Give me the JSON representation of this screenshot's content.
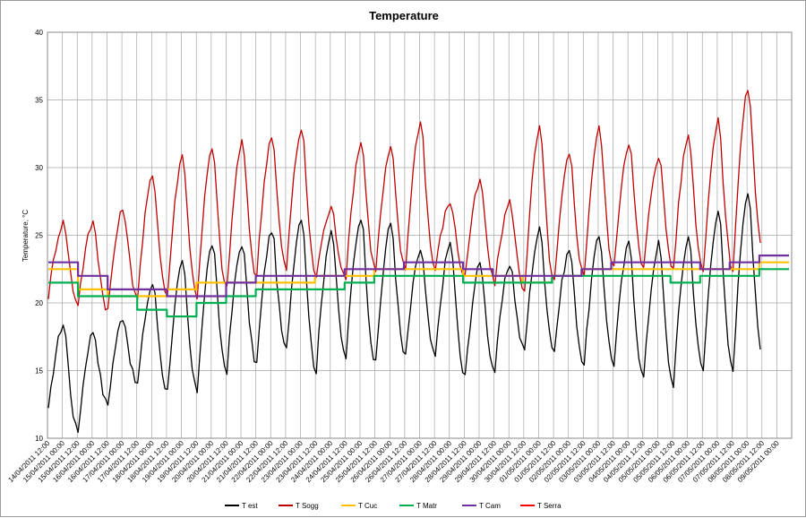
{
  "chart_data": {
    "type": "line",
    "title": "Temperature",
    "ylabel": "Temperature, °C",
    "xlabel": "",
    "ylim": [
      10,
      40
    ],
    "yticks": [
      10,
      15,
      20,
      25,
      30,
      35,
      40
    ],
    "grid": true,
    "legend": "bottom",
    "x_ticks": [
      "14/04/2011 12:00",
      "15/04/2011 00:00",
      "15/04/2011 12:00",
      "16/04/2011 00:00",
      "16/04/2011 12:00",
      "17/04/2011 00:00",
      "17/04/2011 12:00",
      "18/04/2011 00:00",
      "18/04/2011 12:00",
      "19/04/2011 00:00",
      "19/04/2011 12:00",
      "20/04/2011 00:00",
      "20/04/2011 12:00",
      "21/04/2011 00:00",
      "21/04/2011 12:00",
      "22/04/2011 00:00",
      "22/04/2011 12:00",
      "23/04/2011 00:00",
      "23/04/2011 12:00",
      "24/04/2011 00:00",
      "24/04/2011 12:00",
      "25/04/2011 00:00",
      "25/04/2011 12:00",
      "26/04/2011 00:00",
      "26/04/2011 12:00",
      "27/04/2011 00:00",
      "27/04/2011 12:00",
      "28/04/2011 00:00",
      "28/04/2011 12:00",
      "29/04/2011 00:00",
      "29/04/2011 12:00",
      "30/04/2011 00:00",
      "30/04/2011 12:00",
      "01/05/2011 00:00",
      "01/05/2011 12:00",
      "02/05/2011 00:00",
      "02/05/2011 12:00",
      "03/05/2011 00:00",
      "03/05/2011 12:00",
      "04/05/2011 00:00",
      "04/05/2011 12:00",
      "05/05/2011 00:00",
      "05/05/2011 12:00",
      "06/05/2011 00:00",
      "06/05/2011 12:00",
      "07/05/2011 00:00",
      "07/05/2011 12:00",
      "08/05/2011 00:00",
      "08/05/2011 12:00",
      "09/05/2011 00:00"
    ],
    "series": [
      {
        "name": "T est",
        "color": "#000000",
        "daily_min": [
          12.0,
          10.5,
          12.5,
          14.0,
          13.5,
          13.5,
          15.0,
          15.5,
          16.5,
          15.0,
          16.0,
          15.5,
          16.0,
          16.0,
          14.5,
          15.0,
          16.5,
          16.5,
          15.5,
          15.5,
          14.5,
          14.0,
          15.0,
          15.0,
          16.0,
          16.5
        ],
        "daily_max": [
          18.5,
          18.0,
          19.0,
          21.5,
          23.0,
          24.5,
          24.5,
          25.5,
          26.5,
          25.5,
          26.5,
          26.0,
          24.0,
          24.5,
          23.0,
          23.0,
          25.5,
          24.0,
          25.0,
          24.5,
          24.5,
          25.0,
          27.0,
          28.5
        ]
      },
      {
        "name": "T Sogg",
        "color": "#c00000",
        "daily_min": [
          20.5,
          20.0,
          19.5,
          20.5,
          20.5,
          20.5,
          21.0,
          22.0,
          22.5,
          22.0,
          22.0,
          22.5,
          22.5,
          22.5,
          22.0,
          21.5,
          21.0,
          21.5,
          22.0,
          22.5,
          22.5,
          22.5,
          22.5,
          22.5,
          24.0,
          24.5
        ],
        "daily_max": [
          26.0,
          26.0,
          27.0,
          29.5,
          31.0,
          31.5,
          32.0,
          32.5,
          33.0,
          27.0,
          32.0,
          31.5,
          33.5,
          27.5,
          29.0,
          27.5,
          33.0,
          31.0,
          33.0,
          32.0,
          31.0,
          32.5,
          33.5,
          36.0
        ]
      },
      {
        "name": "T Cuc",
        "color": "#ffc000",
        "values": [
          22.5,
          21.0,
          20.5,
          20.5,
          21.0,
          21.5,
          21.5,
          21.5,
          21.5,
          22.0,
          22.0,
          22.5,
          22.5,
          22.5,
          22.0,
          22.0,
          21.5,
          22.0,
          22.5,
          22.5,
          22.5,
          22.5,
          22.5,
          22.5,
          23.0
        ]
      },
      {
        "name": "T Matr",
        "color": "#00b050",
        "values": [
          21.5,
          20.5,
          20.5,
          19.5,
          19.0,
          20.0,
          20.5,
          21.0,
          21.0,
          21.0,
          21.5,
          22.0,
          22.0,
          22.0,
          21.5,
          21.5,
          21.5,
          22.0,
          22.0,
          22.0,
          22.0,
          21.5,
          22.0,
          22.0,
          22.5
        ]
      },
      {
        "name": "T Cam",
        "color": "#7030a0",
        "values": [
          23.0,
          22.0,
          21.0,
          21.0,
          20.5,
          20.5,
          21.5,
          22.0,
          22.0,
          22.0,
          22.5,
          22.5,
          23.0,
          23.0,
          22.5,
          22.0,
          22.0,
          22.0,
          22.5,
          23.0,
          23.0,
          23.0,
          22.5,
          23.0,
          23.5
        ]
      },
      {
        "name": "T Serra",
        "color": "#ff0000",
        "values": []
      }
    ]
  }
}
